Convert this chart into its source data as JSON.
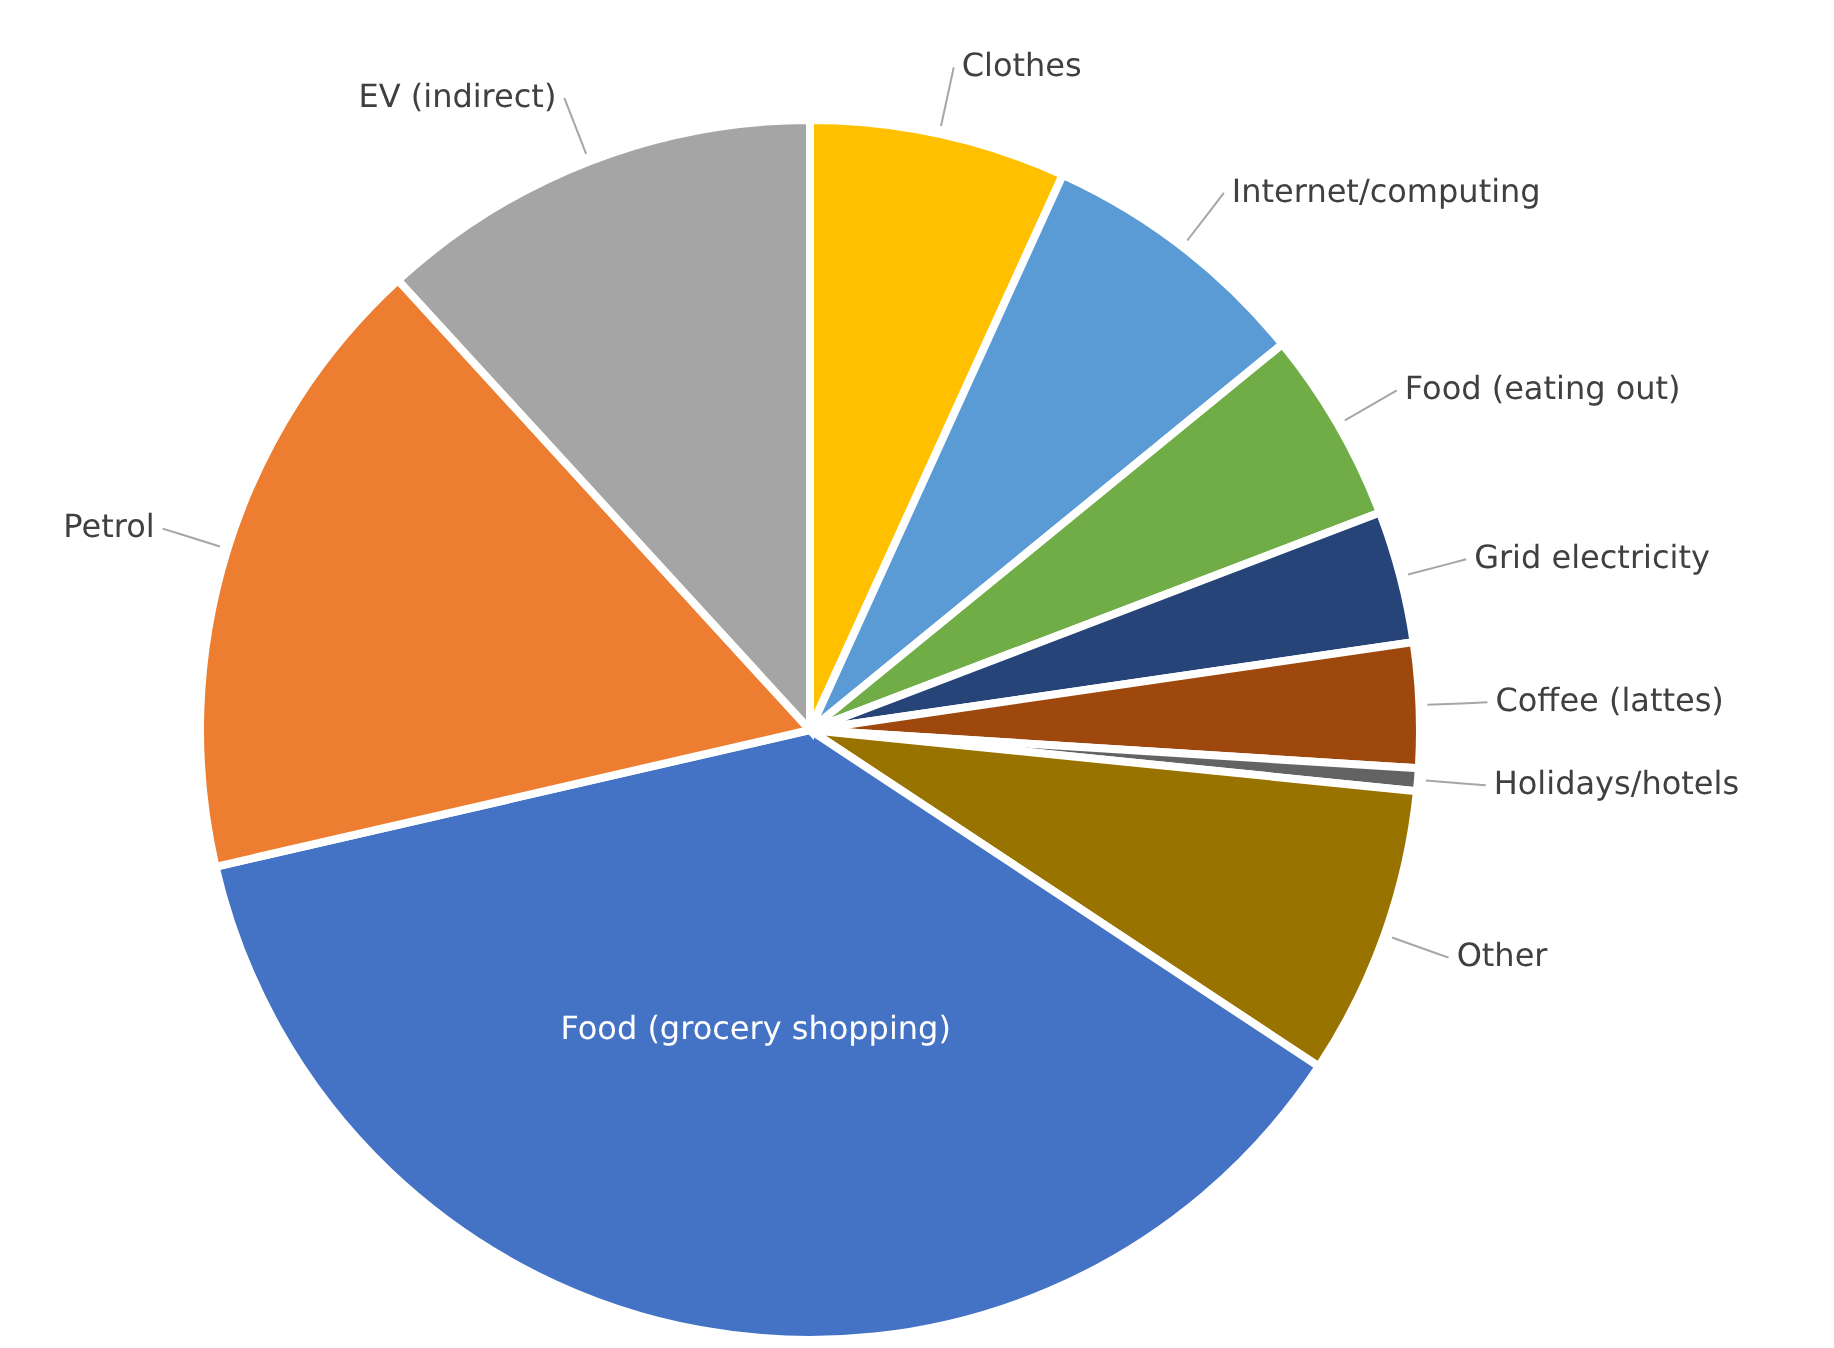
{
  "chart_data": {
    "type": "pie",
    "categories": [
      "Clothes",
      "Internet/computing",
      "Food  (eating out)",
      "Grid electricity",
      "Coffee (lattes)",
      "Holidays/hotels",
      "Other",
      "Food  (grocery shopping)",
      "Petrol",
      "EV (indirect)"
    ],
    "values": [
      6.8,
      7.3,
      5.1,
      3.5,
      3.3,
      0.6,
      7.7,
      37.1,
      16.8,
      11.8
    ],
    "colors": [
      "#ffc000",
      "#5b9bd5",
      "#70ad47",
      "#264478",
      "#9e480e",
      "#636363",
      "#997300",
      "#4472c4",
      "#ed7d31",
      "#a5a5a5"
    ]
  }
}
